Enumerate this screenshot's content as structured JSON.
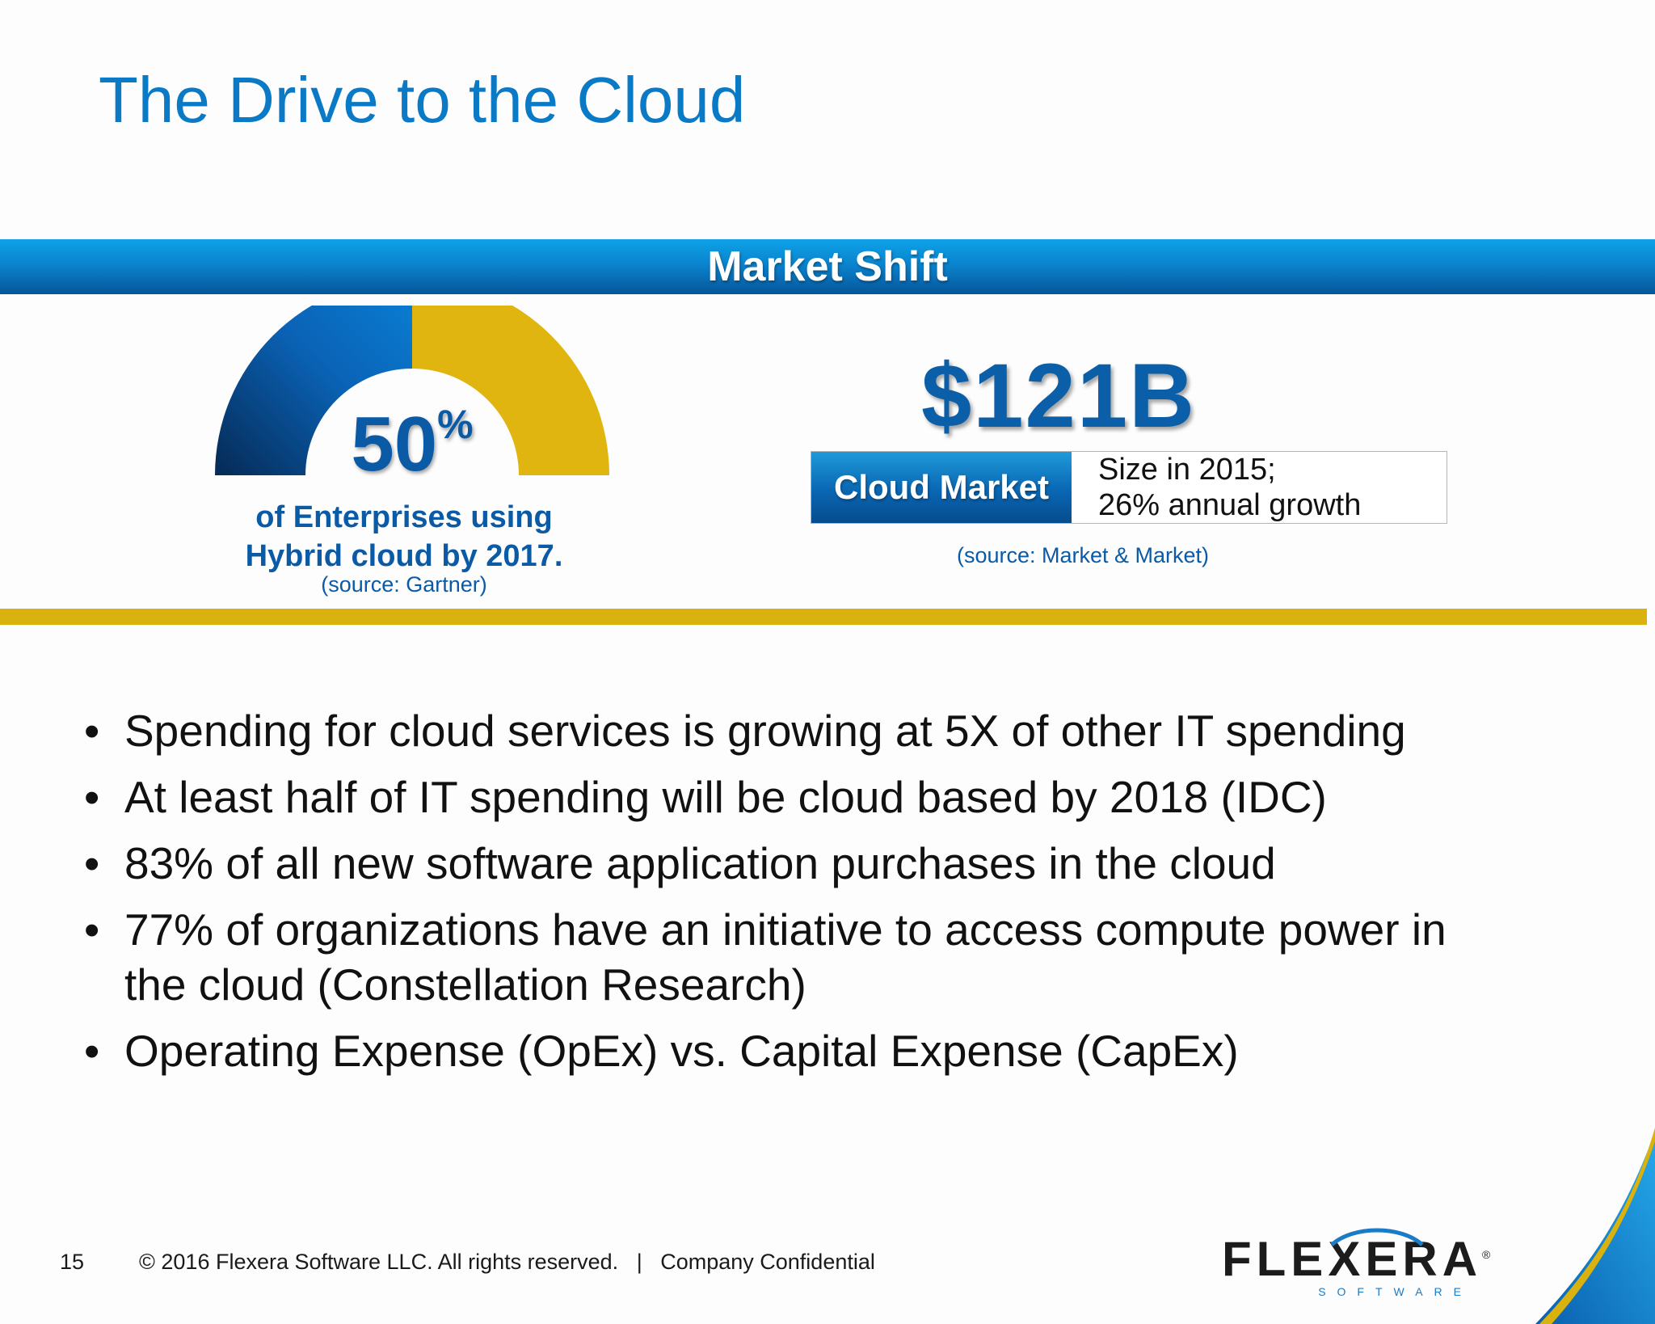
{
  "slide": {
    "title": "The Drive to the Cloud",
    "banner": "Market Shift"
  },
  "stat_left": {
    "value": "50",
    "unit": "%",
    "gauge_fraction": 0.5,
    "caption_line1": "of Enterprises using",
    "caption_line2": "Hybrid cloud by 2017.",
    "source": "(source: Gartner)"
  },
  "stat_right": {
    "value": "$121B",
    "label": "Cloud Market",
    "detail_line1": "Size in 2015;",
    "detail_line2": "26% annual growth",
    "source": "(source: Market & Market)"
  },
  "bullets": [
    {
      "line1": "Spending for cloud services is growing at 5X of other IT spending",
      "line2": ""
    },
    {
      "line1": "At least half of IT spending will be cloud based by 2018 (IDC)",
      "line2": ""
    },
    {
      "line1": "83% of all new software application purchases in the cloud",
      "line2": ""
    },
    {
      "line1": "77% of organizations have an initiative to access compute power in",
      "line2": "the cloud (Constellation Research)"
    },
    {
      "line1": "Operating Expense (OpEx) vs. Capital Expense (CapEx)",
      "line2": ""
    }
  ],
  "bullet_glyph": "•",
  "footer": {
    "page_number": "15",
    "copyright": "© 2016 Flexera Software LLC. All rights reserved.",
    "separator": "|",
    "confidential": "Company Confidential"
  },
  "logo": {
    "wordmark": "FLEXERA",
    "tagline": "SOFTWARE",
    "registered": "®"
  },
  "colors": {
    "title_blue": "#0a7ac6",
    "banner_blue": "#0a84cf",
    "gauge_blue": "#0a7dd0",
    "gauge_gold": "#e0b50f",
    "rule_gold": "#d9b20f",
    "text_dark": "#111111"
  }
}
